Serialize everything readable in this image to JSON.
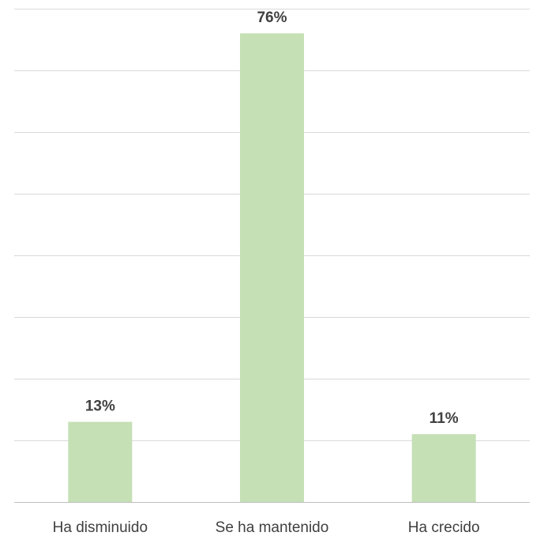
{
  "chart_data": {
    "type": "bar",
    "categories": [
      "Ha disminuido",
      "Se ha mantenido",
      "Ha crecido"
    ],
    "values": [
      13,
      76,
      11
    ],
    "data_labels": [
      "13%",
      "76%",
      "11%"
    ],
    "title": "",
    "xlabel": "",
    "ylabel": "",
    "ylim": [
      0,
      80
    ],
    "gridlines": true,
    "bar_color": "#c5e0b4"
  }
}
